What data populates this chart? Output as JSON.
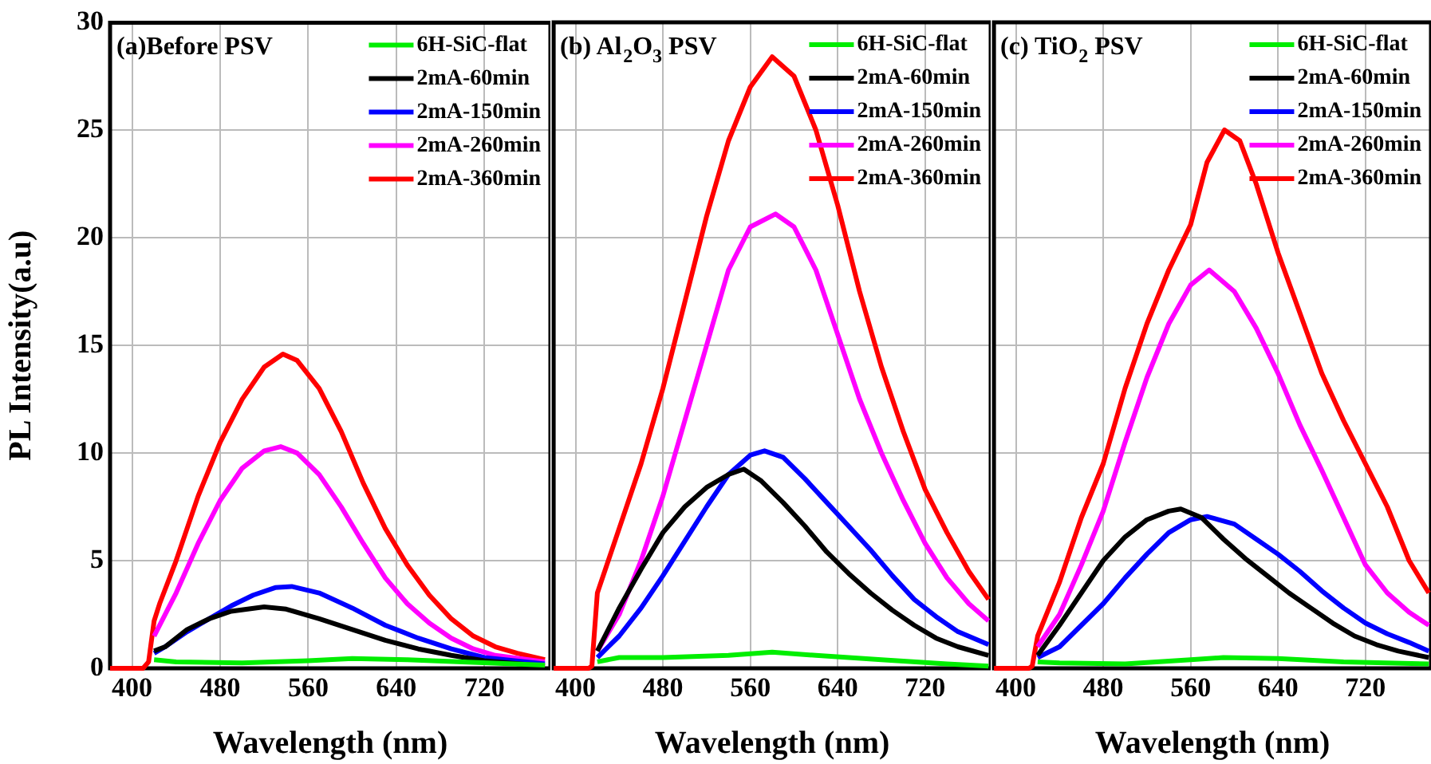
{
  "chart_data": [
    {
      "type": "line",
      "title": "(a)Before PSV",
      "xlabel": "Wavelength (nm)",
      "ylabel": "PL Intensity(a.u)",
      "xlim": [
        380,
        780
      ],
      "xticks": [
        400,
        480,
        560,
        640,
        720
      ],
      "ylim": [
        0,
        30
      ],
      "yticks": [
        0,
        5,
        10,
        15,
        20,
        25,
        30
      ],
      "grid": true,
      "legend": "top right",
      "marker": "none",
      "series": [
        {
          "name": "6H-SiC-flat",
          "color": "#00ee00",
          "x": [
            420,
            440,
            500,
            560,
            600,
            650,
            700,
            775
          ],
          "values": [
            0.4,
            0.3,
            0.25,
            0.35,
            0.45,
            0.4,
            0.3,
            0.15
          ]
        },
        {
          "name": "2mA-60min",
          "color": "#000000",
          "x": [
            420,
            430,
            450,
            470,
            490,
            520,
            540,
            570,
            600,
            630,
            660,
            690,
            720,
            775
          ],
          "values": [
            0.8,
            1.0,
            1.8,
            2.3,
            2.65,
            2.85,
            2.75,
            2.3,
            1.8,
            1.3,
            0.9,
            0.6,
            0.35,
            0.1
          ]
        },
        {
          "name": "2mA-150min",
          "color": "#0000ff",
          "x": [
            420,
            430,
            450,
            470,
            490,
            510,
            530,
            545,
            570,
            600,
            630,
            660,
            690,
            720,
            775
          ],
          "values": [
            0.7,
            1,
            1.7,
            2.3,
            2.9,
            3.4,
            3.75,
            3.8,
            3.5,
            2.8,
            2,
            1.4,
            0.9,
            0.5,
            0.2
          ]
        },
        {
          "name": "2mA-260min",
          "color": "#ff00ff",
          "x": [
            420,
            440,
            460,
            480,
            500,
            520,
            535,
            550,
            570,
            590,
            610,
            630,
            650,
            670,
            690,
            710,
            730,
            775
          ],
          "values": [
            1.5,
            3.5,
            5.8,
            7.8,
            9.3,
            10.1,
            10.3,
            10,
            9,
            7.5,
            5.8,
            4.2,
            3,
            2.1,
            1.4,
            0.9,
            0.6,
            0.3
          ]
        },
        {
          "name": "2mA-360min",
          "color": "#ff0000",
          "x": [
            380,
            410,
            415,
            420,
            425,
            440,
            460,
            480,
            500,
            520,
            537,
            550,
            570,
            590,
            610,
            630,
            650,
            670,
            690,
            710,
            730,
            750,
            775
          ],
          "values": [
            0,
            0,
            0.3,
            2.2,
            3,
            5,
            8,
            10.5,
            12.5,
            14,
            14.6,
            14.3,
            13,
            11,
            8.6,
            6.5,
            4.8,
            3.4,
            2.3,
            1.5,
            1,
            0.7,
            0.4
          ]
        }
      ]
    },
    {
      "type": "line",
      "title": "(b) Al$_{2}$O$_{3}$ PSV",
      "xlabel": "Wavelength (nm)",
      "xlim": [
        380,
        780
      ],
      "xticks": [
        400,
        480,
        560,
        640,
        720
      ],
      "ylim": [
        0,
        30
      ],
      "yticks": [
        0,
        5,
        10,
        15,
        20,
        25,
        30
      ],
      "tick_labels": "x",
      "grid": true,
      "legend": "top right",
      "marker": "none",
      "series": [
        {
          "name": "6H-SiC-flat",
          "color": "#00ee00",
          "x": [
            420,
            440,
            480,
            540,
            580,
            620,
            680,
            740,
            778
          ],
          "values": [
            0.3,
            0.5,
            0.5,
            0.6,
            0.75,
            0.6,
            0.4,
            0.2,
            0.1
          ]
        },
        {
          "name": "2mA-60min",
          "color": "#000000",
          "x": [
            420,
            440,
            460,
            480,
            500,
            520,
            540,
            554,
            570,
            590,
            610,
            630,
            650,
            670,
            690,
            710,
            730,
            750,
            778
          ],
          "values": [
            0.8,
            2.8,
            4.6,
            6.3,
            7.5,
            8.4,
            9,
            9.25,
            8.7,
            7.7,
            6.6,
            5.4,
            4.4,
            3.5,
            2.7,
            2,
            1.4,
            1,
            0.6
          ]
        },
        {
          "name": "2mA-150min",
          "color": "#0000ff",
          "x": [
            420,
            440,
            460,
            480,
            500,
            520,
            540,
            560,
            573,
            590,
            610,
            630,
            650,
            670,
            690,
            710,
            730,
            750,
            778
          ],
          "values": [
            0.5,
            1.5,
            2.8,
            4.3,
            5.9,
            7.5,
            9,
            9.9,
            10.1,
            9.8,
            8.8,
            7.7,
            6.6,
            5.5,
            4.3,
            3.2,
            2.4,
            1.7,
            1.1
          ]
        },
        {
          "name": "2mA-260min",
          "color": "#ff00ff",
          "x": [
            420,
            440,
            460,
            480,
            500,
            520,
            540,
            560,
            583,
            600,
            620,
            640,
            660,
            680,
            700,
            720,
            740,
            760,
            778
          ],
          "values": [
            0.8,
            2.5,
            5,
            8,
            11.5,
            15,
            18.5,
            20.5,
            21.1,
            20.5,
            18.5,
            15.5,
            12.5,
            10,
            7.8,
            5.8,
            4.2,
            3,
            2.2
          ]
        },
        {
          "name": "2mA-360min",
          "color": "#ff0000",
          "x": [
            380,
            412,
            415,
            420,
            430,
            460,
            480,
            500,
            520,
            540,
            560,
            580,
            600,
            620,
            640,
            660,
            680,
            700,
            720,
            740,
            760,
            778
          ],
          "values": [
            0,
            0,
            0.1,
            3.5,
            5,
            9.5,
            13,
            17,
            21,
            24.5,
            27,
            28.4,
            27.5,
            25,
            21.5,
            17.5,
            14,
            11,
            8.3,
            6.3,
            4.5,
            3.2
          ]
        }
      ]
    },
    {
      "type": "line",
      "title": "(c) TiO$_{2}$ PSV",
      "xlabel": "Wavelength (nm)",
      "xlim": [
        380,
        780
      ],
      "xticks": [
        400,
        480,
        560,
        640,
        720
      ],
      "ylim": [
        0,
        30
      ],
      "yticks": [
        0,
        5,
        10,
        15,
        20,
        25,
        30
      ],
      "tick_labels": "x",
      "grid": true,
      "legend": "top right",
      "marker": "none",
      "series": [
        {
          "name": "6H-SiC-flat",
          "color": "#00ee00",
          "x": [
            420,
            440,
            500,
            560,
            590,
            640,
            700,
            778
          ],
          "values": [
            0.3,
            0.25,
            0.2,
            0.4,
            0.5,
            0.45,
            0.3,
            0.2
          ]
        },
        {
          "name": "2mA-60min",
          "color": "#000000",
          "x": [
            420,
            440,
            460,
            480,
            500,
            520,
            540,
            551,
            570,
            590,
            610,
            630,
            650,
            670,
            690,
            710,
            730,
            750,
            778
          ],
          "values": [
            0.6,
            2,
            3.5,
            5,
            6.1,
            6.9,
            7.3,
            7.4,
            7,
            6,
            5.1,
            4.3,
            3.5,
            2.8,
            2.1,
            1.5,
            1.1,
            0.8,
            0.5
          ]
        },
        {
          "name": "2mA-150min",
          "color": "#0000ff",
          "x": [
            420,
            440,
            460,
            480,
            500,
            520,
            540,
            560,
            575,
            600,
            620,
            640,
            660,
            680,
            700,
            720,
            740,
            760,
            778
          ],
          "values": [
            0.5,
            1,
            2,
            3,
            4.2,
            5.3,
            6.3,
            6.9,
            7.05,
            6.7,
            6,
            5.3,
            4.5,
            3.6,
            2.8,
            2.1,
            1.6,
            1.2,
            0.8
          ]
        },
        {
          "name": "2mA-260min",
          "color": "#ff00ff",
          "x": [
            420,
            440,
            460,
            480,
            500,
            520,
            540,
            560,
            577,
            600,
            620,
            640,
            660,
            680,
            700,
            720,
            740,
            760,
            778
          ],
          "values": [
            1,
            2.5,
            4.8,
            7.3,
            10.5,
            13.5,
            16,
            17.8,
            18.5,
            17.5,
            15.8,
            13.7,
            11.3,
            9.2,
            7,
            4.8,
            3.5,
            2.6,
            2
          ]
        },
        {
          "name": "2mA-360min",
          "color": "#ff0000",
          "x": [
            380,
            412,
            415,
            420,
            440,
            460,
            480,
            500,
            520,
            540,
            560,
            575,
            591,
            605,
            620,
            640,
            660,
            680,
            700,
            720,
            740,
            760,
            778
          ],
          "values": [
            0,
            0,
            0.1,
            1.5,
            4,
            7,
            9.5,
            13,
            16,
            18.5,
            20.6,
            23.5,
            25,
            24.5,
            22.5,
            19.3,
            16.5,
            13.7,
            11.5,
            9.5,
            7.5,
            5,
            3.5
          ]
        }
      ]
    }
  ]
}
